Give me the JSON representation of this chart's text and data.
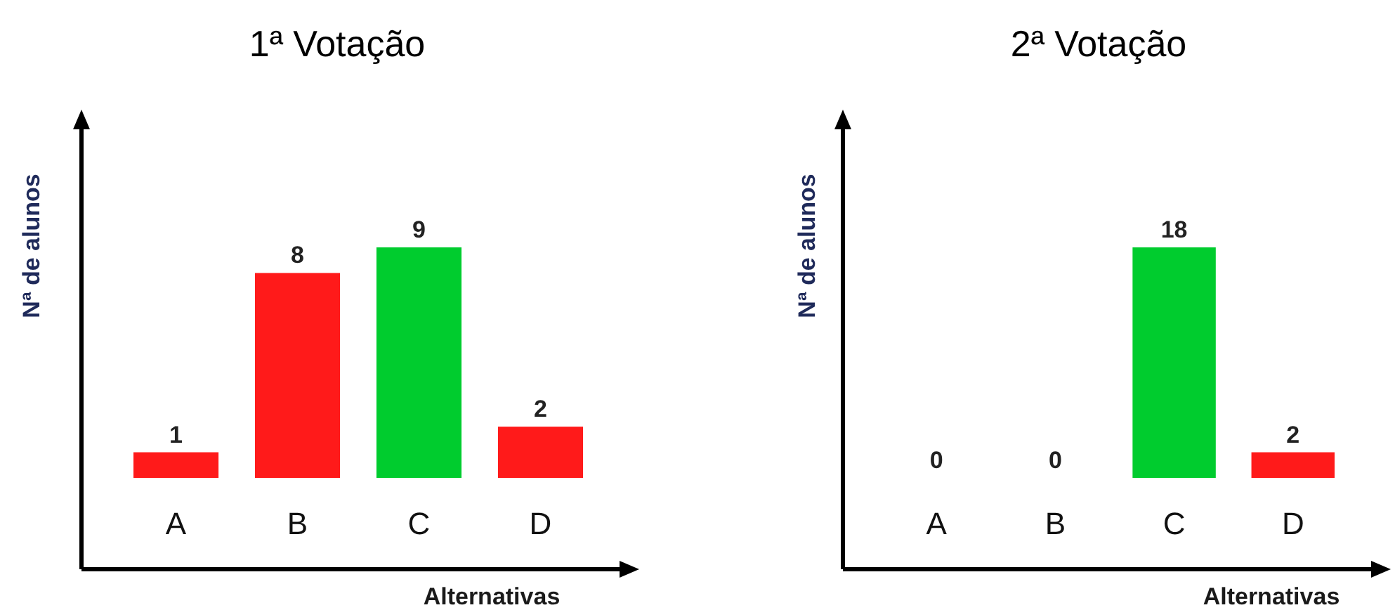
{
  "chart_data": [
    {
      "type": "bar",
      "title": "1ª Votação",
      "xlabel": "Alternativas",
      "ylabel": "Nª de alunos",
      "categories": [
        "A",
        "B",
        "C",
        "D"
      ],
      "values": [
        1,
        8,
        9,
        2
      ],
      "colors": [
        "#ff1a1a",
        "#ff1a1a",
        "#00cc2e",
        "#ff1a1a"
      ],
      "data_labels": true
    },
    {
      "type": "bar",
      "title": "2ª Votação",
      "xlabel": "Alternativas",
      "ylabel": "Nª de alunos",
      "categories": [
        "A",
        "B",
        "C",
        "D"
      ],
      "values": [
        0,
        0,
        18,
        2
      ],
      "colors": [
        "#ff1a1a",
        "#ff1a1a",
        "#00cc2e",
        "#ff1a1a"
      ],
      "data_labels": true
    }
  ]
}
